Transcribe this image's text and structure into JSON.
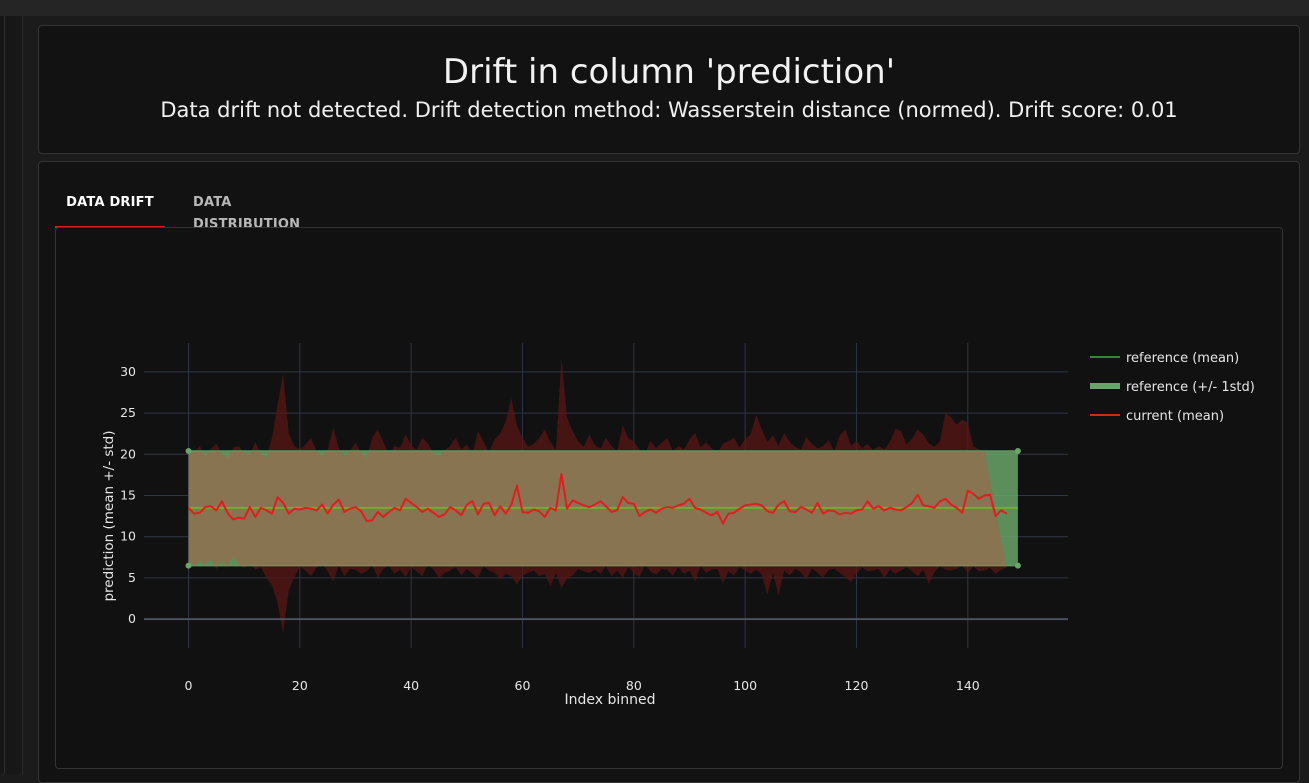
{
  "header": {
    "title": "Drift in column 'prediction'",
    "subtitle": "Data drift not detected. Drift detection method: Wasserstein distance (normed). Drift score: 0.01"
  },
  "tabs": [
    {
      "label": "DATA DRIFT",
      "active": true
    },
    {
      "label": "DATA DISTRIBUTION",
      "active": false
    }
  ],
  "colors": {
    "reference_mean": "#2d8a2d",
    "reference_band": "#6aa46a",
    "current_mean": "#e01e1e",
    "current_band": "#5a1616",
    "tab_accent": "#d32020"
  },
  "chart_data": {
    "type": "line",
    "xlabel": "Index binned",
    "ylabel": "prediction (mean +/- std)",
    "xlim": [
      -8,
      158
    ],
    "ylim": [
      -3.5,
      33.5
    ],
    "xticks": [
      0,
      20,
      40,
      60,
      80,
      100,
      120,
      140
    ],
    "yticks": [
      0,
      5,
      10,
      15,
      20,
      25,
      30
    ],
    "grid": true,
    "legend_position": "right",
    "legend": [
      "reference (mean)",
      "reference (+/- 1std)",
      "current (mean)"
    ],
    "reference": {
      "x_start": 0,
      "x_end": 149,
      "mean": 13.5,
      "upper": 20.4,
      "lower": 6.5
    },
    "current_mean": [
      13.5,
      12.8,
      12.9,
      13.6,
      13.7,
      13.2,
      14.3,
      12.9,
      12.1,
      12.3,
      12.2,
      13.6,
      12.4,
      13.5,
      13.2,
      12.8,
      14.8,
      14.1,
      12.8,
      13.4,
      13.3,
      13.5,
      13.4,
      13.2,
      13.9,
      12.8,
      13.9,
      14.5,
      13.0,
      13.4,
      13.6,
      13.1,
      11.9,
      12.0,
      13.0,
      12.4,
      13.0,
      13.5,
      13.2,
      14.6,
      14.1,
      13.6,
      13.0,
      13.4,
      12.9,
      12.4,
      12.7,
      13.6,
      13.2,
      12.6,
      13.9,
      14.3,
      12.7,
      14.0,
      14.1,
      12.6,
      13.7,
      12.8,
      13.9,
      16.2,
      13.0,
      12.9,
      13.3,
      13.1,
      12.4,
      13.5,
      13.2,
      17.6,
      13.4,
      14.4,
      14.1,
      13.8,
      13.6,
      13.9,
      14.3,
      13.7,
      13.0,
      13.2,
      14.8,
      14.1,
      14.0,
      12.5,
      13.0,
      13.3,
      12.9,
      13.4,
      13.6,
      13.5,
      13.8,
      14.0,
      14.6,
      13.5,
      13.3,
      12.9,
      12.6,
      13.0,
      11.6,
      12.8,
      12.9,
      13.4,
      13.8,
      13.9,
      14.0,
      13.8,
      13.1,
      12.9,
      13.9,
      14.3,
      13.1,
      13.0,
      13.6,
      13.3,
      12.9,
      14.1,
      12.8,
      13.2,
      13.1,
      12.7,
      12.9,
      12.8,
      13.2,
      13.3,
      14.3,
      13.4,
      13.7,
      13.2,
      13.5,
      13.3,
      13.2,
      13.6,
      14.1,
      15.1,
      13.8,
      13.7,
      13.5,
      14.3,
      14.6,
      13.9,
      13.5,
      12.9,
      15.6,
      15.2,
      14.6,
      15.0,
      15.1,
      12.5,
      13.2,
      12.8
    ],
    "current_upper": [
      20.5,
      20.2,
      21.0,
      19.8,
      20.6,
      21.3,
      20.1,
      19.5,
      20.8,
      21.0,
      20.2,
      19.9,
      21.5,
      20.0,
      19.6,
      22.0,
      26.0,
      29.8,
      22.5,
      21.0,
      20.6,
      21.2,
      21.9,
      20.4,
      19.8,
      20.5,
      23.3,
      20.7,
      19.9,
      20.4,
      21.4,
      20.2,
      19.5,
      22.0,
      23.0,
      21.5,
      20.0,
      21.0,
      20.8,
      22.4,
      21.1,
      20.5,
      22.0,
      21.3,
      20.1,
      19.8,
      20.5,
      21.0,
      22.0,
      20.6,
      21.2,
      20.0,
      22.8,
      21.5,
      20.3,
      21.8,
      22.5,
      24.0,
      26.8,
      23.5,
      22.0,
      20.9,
      21.3,
      22.0,
      23.0,
      21.5,
      20.5,
      31.7,
      24.5,
      22.8,
      21.6,
      20.9,
      22.4,
      21.1,
      20.7,
      22.0,
      21.0,
      20.3,
      23.5,
      22.0,
      21.5,
      20.6,
      20.1,
      21.6,
      20.8,
      21.4,
      22.0,
      20.4,
      21.0,
      20.6,
      21.8,
      22.6,
      20.9,
      21.4,
      20.7,
      20.1,
      21.3,
      21.6,
      22.0,
      20.8,
      21.9,
      22.4,
      24.8,
      23.0,
      21.5,
      22.3,
      21.0,
      22.6,
      21.5,
      20.9,
      20.6,
      22.1,
      21.3,
      20.7,
      21.0,
      21.7,
      20.4,
      22.3,
      23.0,
      21.0,
      21.6,
      20.8,
      21.2,
      20.5,
      21.0,
      20.6,
      21.5,
      23.1,
      22.8,
      21.2,
      21.9,
      23.0,
      22.4,
      21.3,
      20.9,
      21.6,
      25.0,
      24.5,
      23.6,
      24.2,
      23.8,
      21.0,
      20.6,
      20.4
    ],
    "current_lower": [
      6.8,
      6.4,
      7.0,
      6.6,
      7.2,
      6.1,
      6.9,
      6.3,
      7.5,
      6.6,
      6.2,
      6.8,
      6.0,
      6.3,
      5.0,
      4.1,
      2.0,
      -1.7,
      3.5,
      5.0,
      6.4,
      5.9,
      5.2,
      6.3,
      6.7,
      5.8,
      4.6,
      6.5,
      5.2,
      6.1,
      6.0,
      5.5,
      5.8,
      6.6,
      5.0,
      6.1,
      6.5,
      5.5,
      6.0,
      5.1,
      6.3,
      5.8,
      5.2,
      6.6,
      6.0,
      5.0,
      5.6,
      5.9,
      6.3,
      5.3,
      6.1,
      5.5,
      5.0,
      6.4,
      5.9,
      5.6,
      4.8,
      5.5,
      5.2,
      4.2,
      5.3,
      5.6,
      5.9,
      5.2,
      5.5,
      4.0,
      5.6,
      3.8,
      4.9,
      5.3,
      6.1,
      5.8,
      5.6,
      6.0,
      5.5,
      6.4,
      5.2,
      5.9,
      5.0,
      6.3,
      5.6,
      5.1,
      6.6,
      5.8,
      5.4,
      6.1,
      6.0,
      5.3,
      6.3,
      5.5,
      5.9,
      4.6,
      6.4,
      5.6,
      6.0,
      6.1,
      4.4,
      5.8,
      5.3,
      6.3,
      5.9,
      5.5,
      6.0,
      5.4,
      3.0,
      5.6,
      2.9,
      5.9,
      5.3,
      6.1,
      5.7,
      4.8,
      6.2,
      5.6,
      5.0,
      6.0,
      6.1,
      5.6,
      5.1,
      4.5,
      5.5,
      6.3,
      5.8,
      5.9,
      6.1,
      5.0,
      6.0,
      5.5,
      5.9,
      6.3,
      5.8,
      5.2,
      6.0,
      4.3,
      5.7,
      6.4,
      6.0,
      5.9,
      6.1,
      6.5,
      5.6,
      6.4,
      5.8,
      5.9,
      6.2,
      5.5,
      6.0,
      6.3
    ]
  }
}
